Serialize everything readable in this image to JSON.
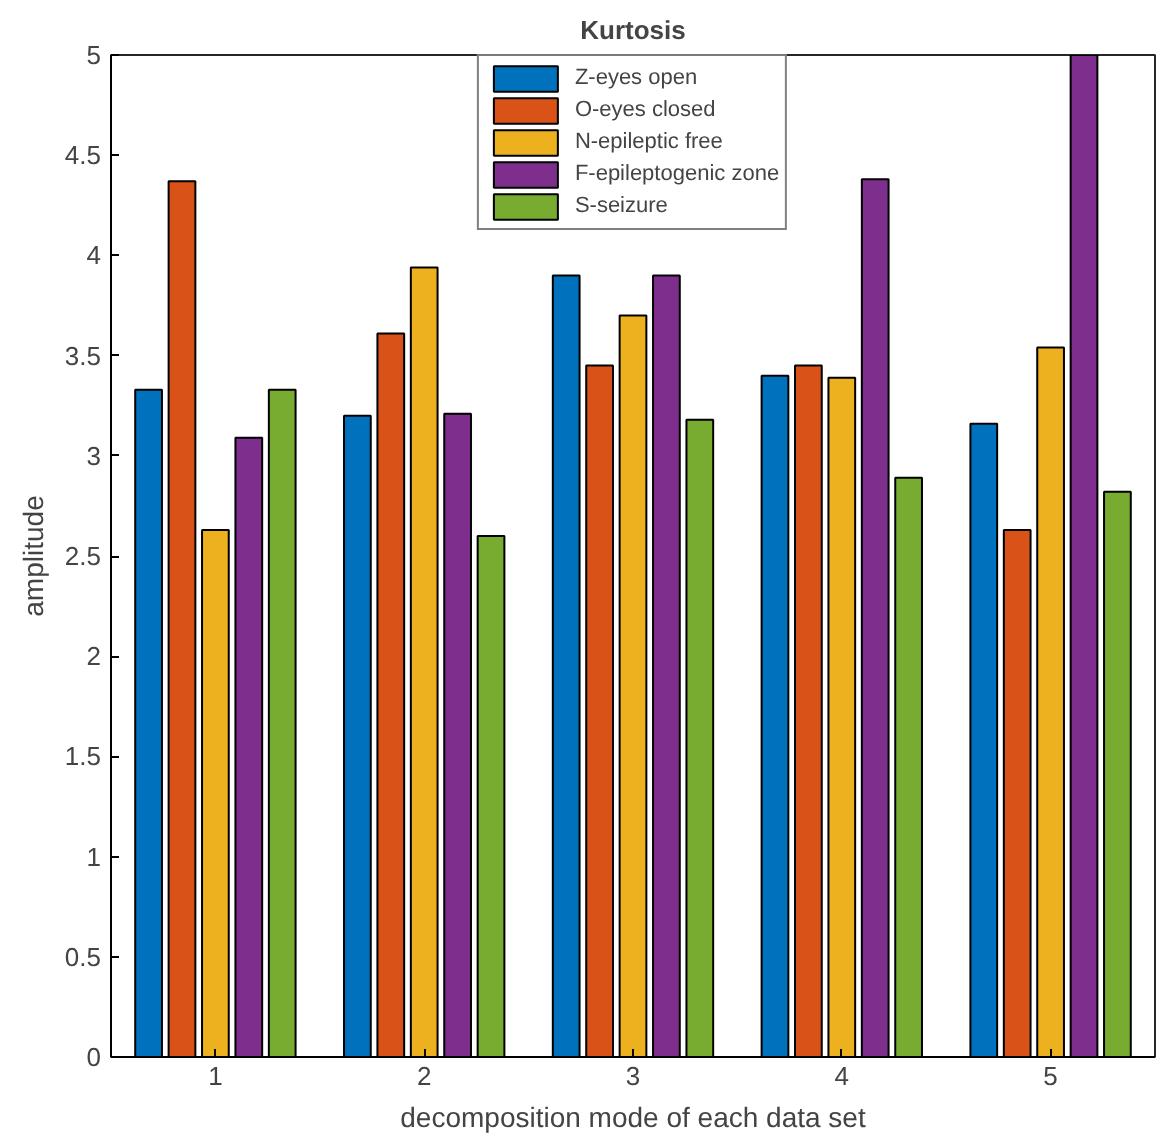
{
  "chart_data": {
    "type": "bar",
    "title": "Kurtosis",
    "xlabel": "decomposition mode of each data set",
    "ylabel": "amplitude",
    "x": [
      1,
      2,
      3,
      4,
      5
    ],
    "xlim": [
      0.5,
      5.5
    ],
    "xticks": [
      1,
      2,
      3,
      4,
      5
    ],
    "ylim": [
      0,
      5
    ],
    "yticks": [
      0,
      0.5,
      1,
      1.5,
      2,
      2.5,
      3,
      3.5,
      4,
      4.5,
      5
    ],
    "grid": false,
    "legend": "top",
    "series": [
      {
        "name": "Z-eyes open",
        "color": "#0072bd",
        "values": [
          3.33,
          3.2,
          3.9,
          3.4,
          3.16
        ]
      },
      {
        "name": "O-eyes closed",
        "color": "#d95319",
        "values": [
          4.37,
          3.61,
          3.45,
          3.45,
          2.63
        ]
      },
      {
        "name": "N-epileptic free",
        "color": "#edb120",
        "values": [
          2.63,
          3.94,
          3.7,
          3.39,
          3.54
        ]
      },
      {
        "name": "F-epileptogenic zone",
        "color": "#7e2f8e",
        "values": [
          3.09,
          3.21,
          3.9,
          4.38,
          5.0
        ]
      },
      {
        "name": "S-seizure",
        "color": "#77ac30",
        "values": [
          3.33,
          2.6,
          3.18,
          2.89,
          2.82
        ]
      }
    ]
  }
}
